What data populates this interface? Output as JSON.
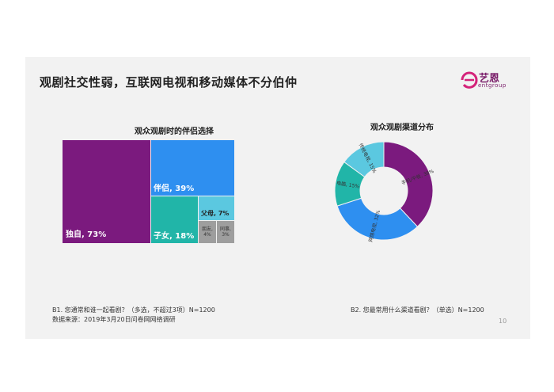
{
  "header": {
    "title": "观剧社交性弱，互联网电视和移动媒体不分伯仲",
    "logo_text": "艺恩",
    "logo_sub": "entgroup"
  },
  "colors": {
    "purple": "#7b1a7e",
    "blue": "#2e8ff0",
    "teal": "#21b5a8",
    "cyan": "#5bc8e0",
    "gray": "#9e9e9e",
    "background": "#f2f2f2"
  },
  "chart_data": [
    {
      "type": "treemap",
      "title": "观众观剧时的伴侣选择",
      "items": [
        {
          "label": "独自",
          "value": 73,
          "text": "独自, 73%"
        },
        {
          "label": "伴侣",
          "value": 39,
          "text": "伴侣, 39%"
        },
        {
          "label": "子女",
          "value": 18,
          "text": "子女, 18%"
        },
        {
          "label": "父母",
          "value": 7,
          "text": "父母, 7%"
        },
        {
          "label": "朋友",
          "value": 4,
          "text": "朋友, 4%"
        },
        {
          "label": "同事",
          "value": 3,
          "text": "同事, 3%"
        }
      ]
    },
    {
      "type": "pie",
      "donut": true,
      "title": "观众观剧渠道分布",
      "slices": [
        {
          "label": "手机/平板",
          "value": 38,
          "text": "手机/平板, 38%",
          "color": "#7b1a7e"
        },
        {
          "label": "网络电视",
          "value": 32,
          "text": "网络电视, 32%",
          "color": "#2e8ff0"
        },
        {
          "label": "电脑",
          "value": 15,
          "text": "电脑, 15%",
          "color": "#21b5a8"
        },
        {
          "label": "传统电视",
          "value": 15,
          "text": "传统电视, 15%",
          "color": "#5bc8e0"
        }
      ]
    }
  ],
  "notes": {
    "q1": "B1. 您通常和谁一起看剧？（多选，不超过3项）N=1200",
    "source": "数据来源：2019年3月20日问卷网网络调研",
    "q2": "B2. 您最常用什么渠道看剧？（单选）N=1200",
    "page": "10"
  }
}
